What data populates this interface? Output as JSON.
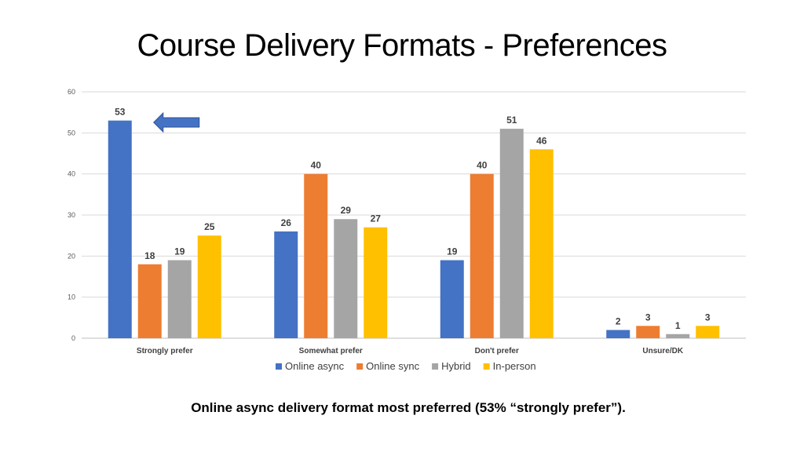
{
  "slide": {
    "title": "Course Delivery Formats - Preferences",
    "caption": "Online async delivery format most preferred (53% “strongly prefer”)."
  },
  "chart_data": {
    "type": "bar",
    "categories": [
      "Strongly prefer",
      "Somewhat prefer",
      "Don't prefer",
      "Unsure/DK"
    ],
    "series": [
      {
        "name": "Online async",
        "values": [
          53,
          26,
          19,
          2
        ],
        "color": "#4472C4"
      },
      {
        "name": "Online sync",
        "values": [
          18,
          40,
          40,
          3
        ],
        "color": "#ED7D31"
      },
      {
        "name": "Hybrid",
        "values": [
          19,
          29,
          51,
          1
        ],
        "color": "#A5A5A5"
      },
      {
        "name": "In-person",
        "values": [
          25,
          27,
          46,
          3
        ],
        "color": "#FFC000"
      }
    ],
    "ylim": [
      0,
      60
    ],
    "yticks": [
      0,
      10,
      20,
      30,
      40,
      50,
      60
    ],
    "grid": true,
    "legend": "bottom",
    "annotation": {
      "type": "arrow",
      "points_to": "Strongly prefer / Online async",
      "color": "#4472C4"
    }
  }
}
